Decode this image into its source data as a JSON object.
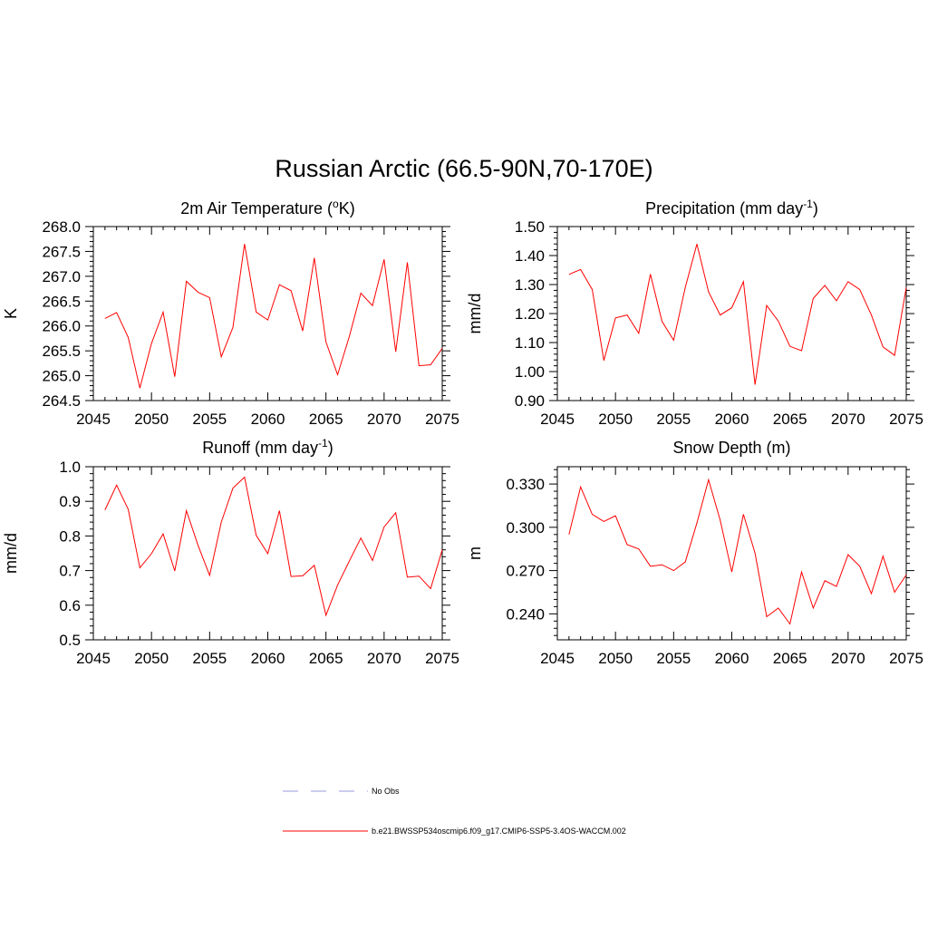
{
  "title": "Russian Arctic (66.5-90N,70-170E)",
  "series_color": "#ff0000",
  "obs_color": "#9999dd",
  "legend": {
    "items": [
      {
        "label": "No Obs",
        "style": "dashed",
        "color": "#9999dd"
      },
      {
        "label": "b.e21.BWSSP534oscmip6.f09_g17.CMIP6-SSP5-3.4OS-WACCM.002",
        "style": "solid",
        "color": "#ff0000"
      }
    ]
  },
  "chart_data": [
    {
      "type": "line",
      "id": "temp",
      "title_main": "2m Air Temperature (",
      "title_sup": "o",
      "title_tail": "K)",
      "ylabel": "K",
      "xlabel": "",
      "xlim": [
        2045,
        2075
      ],
      "ylim": [
        264.5,
        268.0
      ],
      "xticks": [
        2045,
        2050,
        2055,
        2060,
        2065,
        2070,
        2075
      ],
      "xtick_labels": [
        "2045",
        "2050",
        "2055",
        "2060",
        "2065",
        "2070",
        "2075"
      ],
      "yticks": [
        264.5,
        265.0,
        265.5,
        266.0,
        266.5,
        267.0,
        267.5,
        268.0
      ],
      "ytick_labels": [
        "264.5",
        "265.0",
        "265.5",
        "266.0",
        "266.5",
        "267.0",
        "267.5",
        "268.0"
      ],
      "yminor_step": 0.1,
      "x": [
        2046,
        2047,
        2048,
        2049,
        2050,
        2051,
        2052,
        2053,
        2054,
        2055,
        2056,
        2057,
        2058,
        2059,
        2060,
        2061,
        2062,
        2063,
        2064,
        2065,
        2066,
        2067,
        2068,
        2069,
        2070,
        2071,
        2072,
        2073,
        2074,
        2075
      ],
      "y": [
        266.15,
        266.27,
        265.77,
        264.75,
        265.65,
        266.28,
        264.98,
        266.9,
        266.68,
        266.57,
        265.38,
        265.97,
        267.65,
        266.28,
        266.12,
        266.83,
        266.71,
        265.9,
        267.37,
        265.68,
        265.02,
        265.78,
        266.66,
        266.41,
        267.34,
        265.48,
        267.28,
        265.2,
        265.22,
        265.55
      ],
      "grid": false
    },
    {
      "type": "line",
      "id": "precip",
      "title_main": "Precipitation (mm day",
      "title_sup": "-1",
      "title_tail": ")",
      "ylabel": "mm/d",
      "xlabel": "",
      "xlim": [
        2045,
        2075
      ],
      "ylim": [
        0.9,
        1.5
      ],
      "xticks": [
        2045,
        2050,
        2055,
        2060,
        2065,
        2070,
        2075
      ],
      "xtick_labels": [
        "2045",
        "2050",
        "2055",
        "2060",
        "2065",
        "2070",
        "2075"
      ],
      "yticks": [
        0.9,
        1.0,
        1.1,
        1.2,
        1.3,
        1.4,
        1.5
      ],
      "ytick_labels": [
        "0.90",
        "1.00",
        "1.10",
        "1.20",
        "1.30",
        "1.40",
        "1.50"
      ],
      "yminor_step": 0.02,
      "x": [
        2046,
        2047,
        2048,
        2049,
        2050,
        2051,
        2052,
        2053,
        2054,
        2055,
        2056,
        2057,
        2058,
        2059,
        2060,
        2061,
        2062,
        2063,
        2064,
        2065,
        2066,
        2067,
        2068,
        2069,
        2070,
        2071,
        2072,
        2073,
        2074,
        2075
      ],
      "y": [
        1.335,
        1.352,
        1.283,
        1.038,
        1.185,
        1.195,
        1.132,
        1.336,
        1.173,
        1.108,
        1.29,
        1.44,
        1.275,
        1.195,
        1.22,
        1.31,
        0.955,
        1.228,
        1.174,
        1.087,
        1.072,
        1.252,
        1.297,
        1.244,
        1.31,
        1.283,
        1.195,
        1.085,
        1.056,
        1.29
      ],
      "grid": false
    },
    {
      "type": "line",
      "id": "runoff",
      "title_main": "Runoff (mm day",
      "title_sup": "-1",
      "title_tail": ")",
      "ylabel": "mm/d",
      "xlabel": "",
      "xlim": [
        2045,
        2075
      ],
      "ylim": [
        0.5,
        1.0
      ],
      "xticks": [
        2045,
        2050,
        2055,
        2060,
        2065,
        2070,
        2075
      ],
      "xtick_labels": [
        "2045",
        "2050",
        "2055",
        "2060",
        "2065",
        "2070",
        "2075"
      ],
      "yticks": [
        0.5,
        0.6,
        0.7,
        0.8,
        0.9,
        1.0
      ],
      "ytick_labels": [
        "0.5",
        "0.6",
        "0.7",
        "0.8",
        "0.9",
        "1.0"
      ],
      "yminor_step": 0.02,
      "x": [
        2046,
        2047,
        2048,
        2049,
        2050,
        2051,
        2052,
        2053,
        2054,
        2055,
        2056,
        2057,
        2058,
        2059,
        2060,
        2061,
        2062,
        2063,
        2064,
        2065,
        2066,
        2067,
        2068,
        2069,
        2070,
        2071,
        2072,
        2073,
        2074,
        2075
      ],
      "y": [
        0.875,
        0.947,
        0.877,
        0.708,
        0.749,
        0.806,
        0.699,
        0.873,
        0.773,
        0.686,
        0.84,
        0.938,
        0.97,
        0.802,
        0.749,
        0.873,
        0.683,
        0.685,
        0.715,
        0.571,
        0.658,
        0.727,
        0.794,
        0.729,
        0.826,
        0.867,
        0.681,
        0.684,
        0.648,
        0.76
      ],
      "grid": false
    },
    {
      "type": "line",
      "id": "snow",
      "title_main": "Snow Depth (m)",
      "title_sup": "",
      "title_tail": "",
      "ylabel": "m",
      "xlabel": "",
      "xlim": [
        2045,
        2075
      ],
      "ylim": [
        0.222,
        0.342
      ],
      "xticks": [
        2045,
        2050,
        2055,
        2060,
        2065,
        2070,
        2075
      ],
      "xtick_labels": [
        "2045",
        "2050",
        "2055",
        "2060",
        "2065",
        "2070",
        "2075"
      ],
      "yticks": [
        0.24,
        0.27,
        0.3,
        0.33
      ],
      "ytick_labels": [
        "0.240",
        "0.270",
        "0.300",
        "0.330"
      ],
      "yminor_step": 0.005,
      "x": [
        2046,
        2047,
        2048,
        2049,
        2050,
        2051,
        2052,
        2053,
        2054,
        2055,
        2056,
        2057,
        2058,
        2059,
        2060,
        2061,
        2062,
        2063,
        2064,
        2065,
        2066,
        2067,
        2068,
        2069,
        2070,
        2071,
        2072,
        2073,
        2074,
        2075
      ],
      "y": [
        0.295,
        0.328,
        0.309,
        0.304,
        0.308,
        0.288,
        0.285,
        0.273,
        0.274,
        0.27,
        0.276,
        0.303,
        0.333,
        0.305,
        0.269,
        0.309,
        0.282,
        0.238,
        0.244,
        0.233,
        0.269,
        0.244,
        0.263,
        0.259,
        0.281,
        0.273,
        0.254,
        0.28,
        0.255,
        0.267
      ],
      "grid": false
    }
  ]
}
